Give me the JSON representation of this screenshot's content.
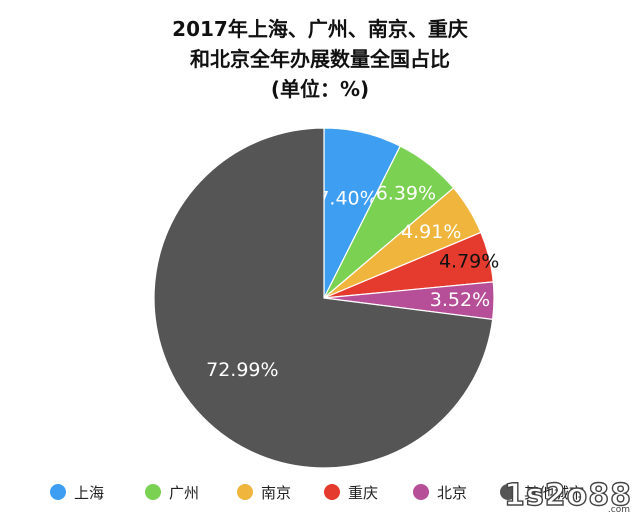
{
  "chart_data": {
    "type": "pie",
    "title_lines": [
      "2017年上海、广州、南京、重庆",
      "和北京全年办展数量全国占比",
      "(单位：%)"
    ],
    "slices": [
      {
        "label": "上海",
        "value": 7.4,
        "value_label": "7.40%",
        "color": "#3d9ef2",
        "label_color": "#ffffff"
      },
      {
        "label": "广州",
        "value": 6.39,
        "value_label": "6.39%",
        "color": "#7ad152",
        "label_color": "#ffffff"
      },
      {
        "label": "南京",
        "value": 4.91,
        "value_label": "4.91%",
        "color": "#f0b53c",
        "label_color": "#ffffff"
      },
      {
        "label": "重庆",
        "value": 4.79,
        "value_label": "4.79%",
        "color": "#e53a2e",
        "label_color": "#111111"
      },
      {
        "label": "北京",
        "value": 3.52,
        "value_label": "3.52%",
        "color": "#b64f98",
        "label_color": "#ffffff"
      },
      {
        "label": "其他城市",
        "value": 72.99,
        "value_label": "72.99%",
        "color": "#555555",
        "label_color": "#ffffff"
      }
    ],
    "start_angle": "top",
    "direction": "clockwise",
    "legend_position": "bottom"
  },
  "watermark": {
    "main": "1s2o88",
    "sub": ".com"
  }
}
